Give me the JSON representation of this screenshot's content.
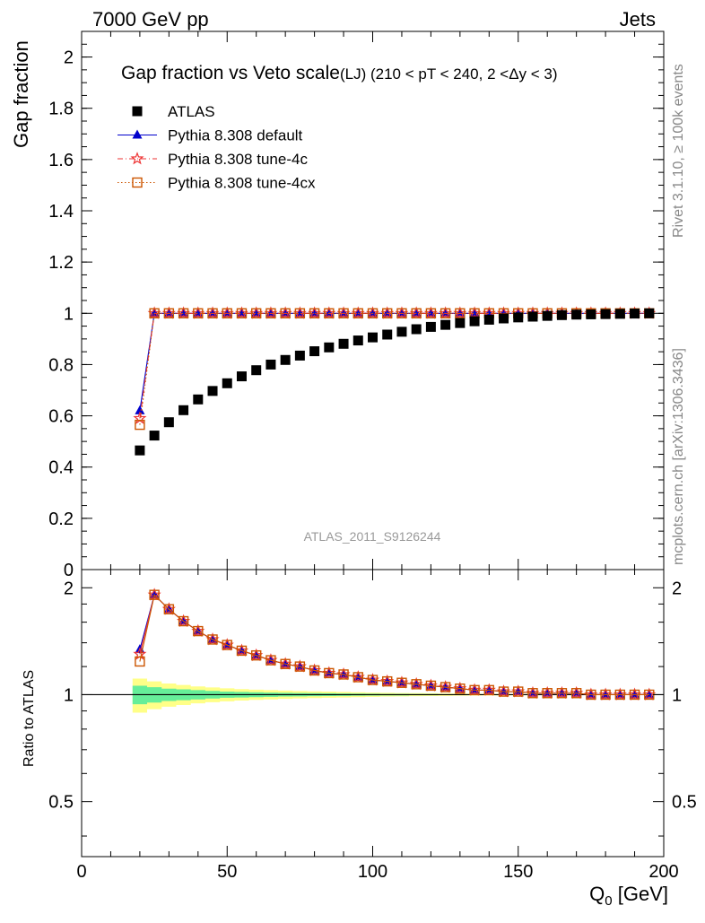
{
  "header": {
    "left": "7000 GeV pp",
    "right": "Jets"
  },
  "side_labels": {
    "rivet": "Rivet 3.1.10, ≥ 100k events",
    "mcplots": "mcplots.cern.ch [arXiv:1306.3436]"
  },
  "chart_data": [
    {
      "type": "scatter",
      "panel": "main",
      "title": "Gap fraction vs Veto scale",
      "subtitle": "(LJ) (210 < pT < 240, 2 <Δy < 3)",
      "ylabel": "Gap fraction",
      "xlim": [
        0,
        200
      ],
      "ylim": [
        0,
        2.1
      ],
      "yticks": [
        0,
        0.2,
        0.4,
        0.6,
        0.8,
        1,
        1.2,
        1.4,
        1.6,
        1.8,
        2
      ],
      "ytick_labels": [
        "0",
        "0.2",
        "0.4",
        "0.6",
        "0.8",
        "1",
        "1.2",
        "1.4",
        "1.6",
        "1.8",
        "2"
      ],
      "watermark": "ATLAS_2011_S9126244",
      "legend_position": "top-left",
      "x": [
        20,
        25,
        30,
        35,
        40,
        45,
        50,
        55,
        60,
        65,
        70,
        75,
        80,
        85,
        90,
        95,
        100,
        105,
        110,
        115,
        120,
        125,
        130,
        135,
        140,
        145,
        150,
        155,
        160,
        165,
        170,
        175,
        180,
        185,
        190,
        195
      ],
      "series": [
        {
          "name": "ATLAS",
          "color": "#000000",
          "marker": "filled-square",
          "line": "none",
          "values": [
            0.465,
            0.523,
            0.575,
            0.622,
            0.664,
            0.697,
            0.727,
            0.754,
            0.778,
            0.8,
            0.818,
            0.835,
            0.852,
            0.867,
            0.881,
            0.894,
            0.906,
            0.917,
            0.928,
            0.938,
            0.947,
            0.955,
            0.962,
            0.969,
            0.975,
            0.98,
            0.984,
            0.987,
            0.99,
            0.993,
            0.995,
            0.996,
            0.997,
            0.998,
            0.999,
            1.0
          ]
        },
        {
          "name": "Pythia 8.308 default",
          "color": "#0000cc",
          "marker": "filled-triangle",
          "line": "solid",
          "values": [
            0.62,
            1,
            1,
            1,
            1,
            1,
            1,
            1,
            1,
            1,
            1,
            1,
            1,
            1,
            1,
            1,
            1,
            1,
            1,
            1,
            1,
            1,
            1,
            1,
            1,
            1,
            1,
            1,
            1,
            1,
            1,
            1,
            1,
            1,
            1,
            1
          ]
        },
        {
          "name": "Pythia 8.308 tune-4c",
          "color": "#ee3333",
          "marker": "open-star",
          "line": "dashdot",
          "values": [
            0.59,
            1,
            1,
            1,
            1,
            1,
            1,
            1,
            1,
            1,
            1,
            1,
            1,
            1,
            1,
            1,
            1,
            1,
            1,
            1,
            1,
            1,
            1,
            1,
            1,
            1,
            1,
            1,
            1,
            1,
            1,
            1,
            1,
            1,
            1,
            1
          ]
        },
        {
          "name": "Pythia 8.308 tune-4cx",
          "color": "#cc5500",
          "marker": "open-square",
          "line": "dotted",
          "values": [
            0.565,
            1,
            1,
            1,
            1,
            1,
            1,
            1,
            1,
            1,
            1,
            1,
            1,
            1,
            1,
            1,
            1,
            1,
            1,
            1,
            1,
            1,
            1,
            1,
            1,
            1,
            1,
            1,
            1,
            1,
            1,
            1,
            1,
            1,
            1,
            1
          ]
        }
      ]
    },
    {
      "type": "line",
      "panel": "ratio",
      "ylabel": "Ratio to ATLAS",
      "xlabel": "Q",
      "xlabel_sub": "0",
      "xlabel_unit": " [GeV]",
      "xlim": [
        0,
        200
      ],
      "ylim": [
        0.35,
        2.25
      ],
      "xticks": [
        0,
        50,
        100,
        150,
        200
      ],
      "xtick_labels": [
        "0",
        "50",
        "100",
        "150",
        "200"
      ],
      "yticks": [
        0.5,
        1,
        2
      ],
      "ytick_labels": [
        "0.5",
        "1",
        "2"
      ],
      "x": [
        20,
        25,
        30,
        35,
        40,
        45,
        50,
        55,
        60,
        65,
        70,
        75,
        80,
        85,
        90,
        95,
        100,
        105,
        110,
        115,
        120,
        125,
        130,
        135,
        140,
        145,
        150,
        155,
        160,
        165,
        170,
        175,
        180,
        185,
        190,
        195
      ],
      "uncertainty": {
        "stat_color": "#66ee99",
        "total_color": "#ffff88",
        "stat": [
          0.06,
          0.05,
          0.04,
          0.035,
          0.03,
          0.025,
          0.02,
          0.018,
          0.016,
          0.014,
          0.012,
          0.011,
          0.01,
          0.009,
          0.008,
          0.007,
          0.006,
          0.005,
          0.005,
          0.004,
          0.004,
          0.003,
          0.003,
          0.003,
          0.002,
          0.002,
          0.002,
          0.002,
          0.001,
          0.001,
          0.001,
          0.001,
          0.001,
          0.001,
          0.001,
          0.001
        ],
        "total": [
          0.11,
          0.09,
          0.075,
          0.065,
          0.055,
          0.048,
          0.042,
          0.037,
          0.033,
          0.03,
          0.027,
          0.024,
          0.022,
          0.02,
          0.018,
          0.016,
          0.014,
          0.012,
          0.011,
          0.01,
          0.009,
          0.008,
          0.007,
          0.006,
          0.005,
          0.005,
          0.004,
          0.004,
          0.003,
          0.003,
          0.003,
          0.002,
          0.002,
          0.002,
          0.002,
          0.002
        ]
      },
      "series": [
        {
          "name": "Pythia 8.308 default",
          "color": "#0000cc",
          "marker": "filled-triangle",
          "values": [
            1.34,
            1.91,
            1.74,
            1.61,
            1.51,
            1.43,
            1.38,
            1.33,
            1.29,
            1.25,
            1.22,
            1.2,
            1.17,
            1.15,
            1.14,
            1.12,
            1.1,
            1.09,
            1.08,
            1.07,
            1.06,
            1.05,
            1.04,
            1.03,
            1.03,
            1.02,
            1.02,
            1.01,
            1.01,
            1.01,
            1.01,
            1.0,
            1.0,
            1.0,
            1.0,
            1.0
          ]
        },
        {
          "name": "Pythia 8.308 tune-4c",
          "color": "#ee3333",
          "marker": "open-star",
          "values": [
            1.3,
            1.91,
            1.74,
            1.61,
            1.51,
            1.43,
            1.38,
            1.33,
            1.29,
            1.25,
            1.22,
            1.2,
            1.17,
            1.15,
            1.14,
            1.12,
            1.1,
            1.09,
            1.08,
            1.07,
            1.06,
            1.05,
            1.04,
            1.03,
            1.03,
            1.02,
            1.02,
            1.01,
            1.01,
            1.01,
            1.01,
            1.0,
            1.0,
            1.0,
            1.0,
            1.0
          ]
        },
        {
          "name": "Pythia 8.308 tune-4cx",
          "color": "#cc5500",
          "marker": "open-square",
          "values": [
            1.24,
            1.91,
            1.74,
            1.61,
            1.51,
            1.43,
            1.38,
            1.33,
            1.29,
            1.25,
            1.22,
            1.2,
            1.17,
            1.15,
            1.14,
            1.12,
            1.1,
            1.09,
            1.08,
            1.07,
            1.06,
            1.05,
            1.04,
            1.03,
            1.03,
            1.02,
            1.02,
            1.01,
            1.01,
            1.01,
            1.01,
            1.0,
            1.0,
            1.0,
            1.0,
            1.0
          ]
        }
      ]
    }
  ]
}
